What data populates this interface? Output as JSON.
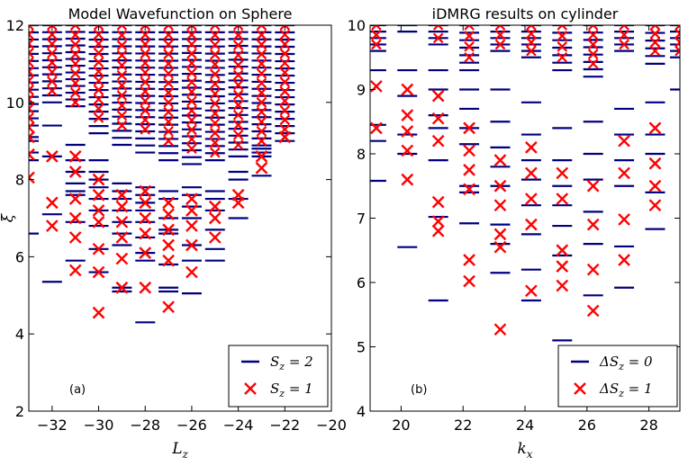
{
  "chart_data": [
    {
      "type": "scatter",
      "title": "Model Wavefunction on Sphere",
      "xlabel": "L_z",
      "ylabel": "ξ",
      "xlim": [
        -33,
        -20
      ],
      "ylim": [
        2,
        12
      ],
      "xticks": [
        -32,
        -30,
        -28,
        -26,
        -24,
        -22,
        -20
      ],
      "yticks": [
        2,
        4,
        6,
        8,
        10,
        12
      ],
      "panel_label": "(a)",
      "legend": {
        "position": "lower-right",
        "entries": [
          {
            "text": "S_z = 2",
            "sub": "z",
            "marker": "dash",
            "color": "#00007f"
          },
          {
            "text": "S_z = 1",
            "sub": "z",
            "marker": "x",
            "color": "#ff0000"
          }
        ]
      },
      "columns_x": [
        -33,
        -32,
        -31,
        -30,
        -29,
        -28,
        -27,
        -26,
        -25,
        -24,
        -23,
        -22
      ],
      "dense_band": {
        "dash_top": 12,
        "dash_bottom": [
          9.4,
          10.0,
          9.9,
          9.2,
          8.9,
          8.7,
          8.5,
          8.4,
          8.5,
          8.6,
          8.7,
          9.2
        ],
        "x_top": 12,
        "x_bottom": [
          9.6,
          10.3,
          10.0,
          9.6,
          9.4,
          9.3,
          9.0,
          8.8,
          8.7,
          8.9,
          9.0,
          9.3
        ]
      },
      "series": [
        {
          "name": "S_z = 2",
          "marker": "dash",
          "color": "#00007f",
          "columns": [
            [
              6.6,
              8.5,
              8.7,
              9.0,
              9.1
            ],
            [
              5.35,
              7.1,
              8.6,
              9.4
            ],
            [
              5.9,
              6.9,
              7.6,
              7.7,
              7.9,
              8.2,
              8.5,
              8.9
            ],
            [
              5.6,
              6.2,
              6.8,
              7.2,
              7.5,
              7.8,
              8.0,
              8.2,
              8.5
            ],
            [
              5.1,
              5.2,
              6.3,
              6.6,
              6.9,
              7.2,
              7.5,
              7.7,
              7.9
            ],
            [
              4.3,
              5.9,
              6.1,
              6.5,
              6.9,
              7.2,
              7.4,
              7.6,
              7.8
            ],
            [
              5.1,
              5.2,
              5.8,
              6.6,
              6.7,
              7.0,
              7.5,
              7.7
            ],
            [
              5.05,
              5.9,
              6.3,
              7.0,
              7.3,
              7.6,
              7.8
            ],
            [
              5.9,
              6.2,
              6.7,
              7.2,
              7.5,
              7.7
            ],
            [
              7.0,
              7.5,
              8.0,
              8.2
            ],
            [
              8.1,
              8.6,
              8.8
            ],
            [
              9.0
            ]
          ]
        },
        {
          "name": "S_z = 1",
          "marker": "x",
          "color": "#ff0000",
          "columns": [
            [
              8.05,
              8.65,
              9.1,
              9.35
            ],
            [
              6.8,
              7.4,
              8.6
            ],
            [
              5.65,
              6.5,
              7.0,
              7.5,
              8.2,
              8.6
            ],
            [
              4.55,
              5.6,
              6.2,
              6.9,
              7.2,
              7.6,
              8.0
            ],
            [
              5.2,
              5.95,
              6.5,
              6.9,
              7.3,
              7.6
            ],
            [
              5.2,
              6.1,
              6.6,
              7.0,
              7.4,
              7.7
            ],
            [
              4.7,
              5.9,
              6.3,
              6.7,
              7.1,
              7.4
            ],
            [
              5.6,
              6.3,
              6.8,
              7.2,
              7.5
            ],
            [
              6.5,
              7.0,
              7.3
            ],
            [
              7.4,
              7.6
            ],
            [
              8.3,
              8.6
            ],
            [
              9.1
            ]
          ]
        }
      ]
    },
    {
      "type": "scatter",
      "title": "iDMRG results on cylinder",
      "xlabel": "k_x",
      "ylabel": "",
      "xlim": [
        19,
        29
      ],
      "ylim": [
        4,
        10
      ],
      "xticks": [
        20,
        22,
        24,
        26,
        28
      ],
      "yticks": [
        4,
        5,
        6,
        7,
        8,
        9,
        10
      ],
      "panel_label": "(b)",
      "legend": {
        "position": "lower-right",
        "entries": [
          {
            "text": "ΔS_z = 0",
            "sub": "z",
            "marker": "dash",
            "color": "#00007f"
          },
          {
            "text": "ΔS_z = 1",
            "sub": "z",
            "marker": "x",
            "color": "#ff0000"
          }
        ]
      },
      "columns_x": [
        19.2,
        20.2,
        21.2,
        22.2,
        23.2,
        24.2,
        25.2,
        26.2,
        27.2,
        28.2,
        29.0
      ],
      "dense_band": {
        "dash_top": 10,
        "dash_bottom": [
          9.6,
          9.9,
          9.7,
          9.3,
          9.6,
          9.5,
          9.3,
          9.2,
          9.6,
          9.4,
          9.5
        ],
        "x_top": 10,
        "x_bottom": [
          9.7,
          9.95,
          9.8,
          9.5,
          9.7,
          9.6,
          9.5,
          9.4,
          9.7,
          9.6,
          9.6
        ]
      },
      "series": [
        {
          "name": "ΔS_z = 0",
          "marker": "dash",
          "color": "#00007f",
          "columns": [
            [
              7.58,
              8.2,
              8.45,
              9.3
            ],
            [
              6.55,
              8.0,
              8.3,
              8.9,
              9.3
            ],
            [
              5.72,
              7.02,
              7.9,
              8.4,
              8.6,
              9.0,
              9.3
            ],
            [
              6.92,
              7.4,
              7.5,
              8.15,
              8.4,
              8.7,
              9.0
            ],
            [
              6.15,
              6.6,
              6.9,
              7.5,
              7.8,
              8.1,
              8.5,
              9.0
            ],
            [
              5.72,
              6.2,
              6.75,
              7.2,
              7.6,
              7.9,
              8.3,
              8.8
            ],
            [
              5.1,
              6.42,
              6.88,
              7.2,
              7.5,
              7.9,
              8.4
            ],
            [
              5.8,
              6.6,
              7.1,
              7.6,
              8.0,
              8.5
            ],
            [
              5.92,
              6.56,
              7.5,
              7.9,
              8.3,
              8.7
            ],
            [
              6.83,
              7.4,
              8.0,
              8.3,
              8.8
            ],
            [
              9.0
            ]
          ]
        },
        {
          "name": "ΔS_z = 1",
          "marker": "x",
          "color": "#ff0000",
          "columns": [
            [
              8.4,
              9.05
            ],
            [
              7.6,
              8.05,
              8.35,
              8.6,
              9.0
            ],
            [
              6.8,
              6.95,
              7.25,
              8.2,
              8.55,
              8.9
            ],
            [
              6.02,
              6.35,
              7.45,
              7.75,
              8.05,
              8.4
            ],
            [
              5.27,
              6.55,
              6.75,
              7.2,
              7.5,
              7.9
            ],
            [
              5.87,
              6.9,
              7.3,
              7.7,
              8.1
            ],
            [
              5.95,
              6.25,
              6.5,
              7.3,
              7.7
            ],
            [
              5.56,
              6.2,
              6.9,
              7.5
            ],
            [
              6.35,
              6.98,
              7.7,
              8.2
            ],
            [
              7.2,
              7.5,
              7.85,
              8.4
            ],
            []
          ]
        }
      ]
    }
  ]
}
